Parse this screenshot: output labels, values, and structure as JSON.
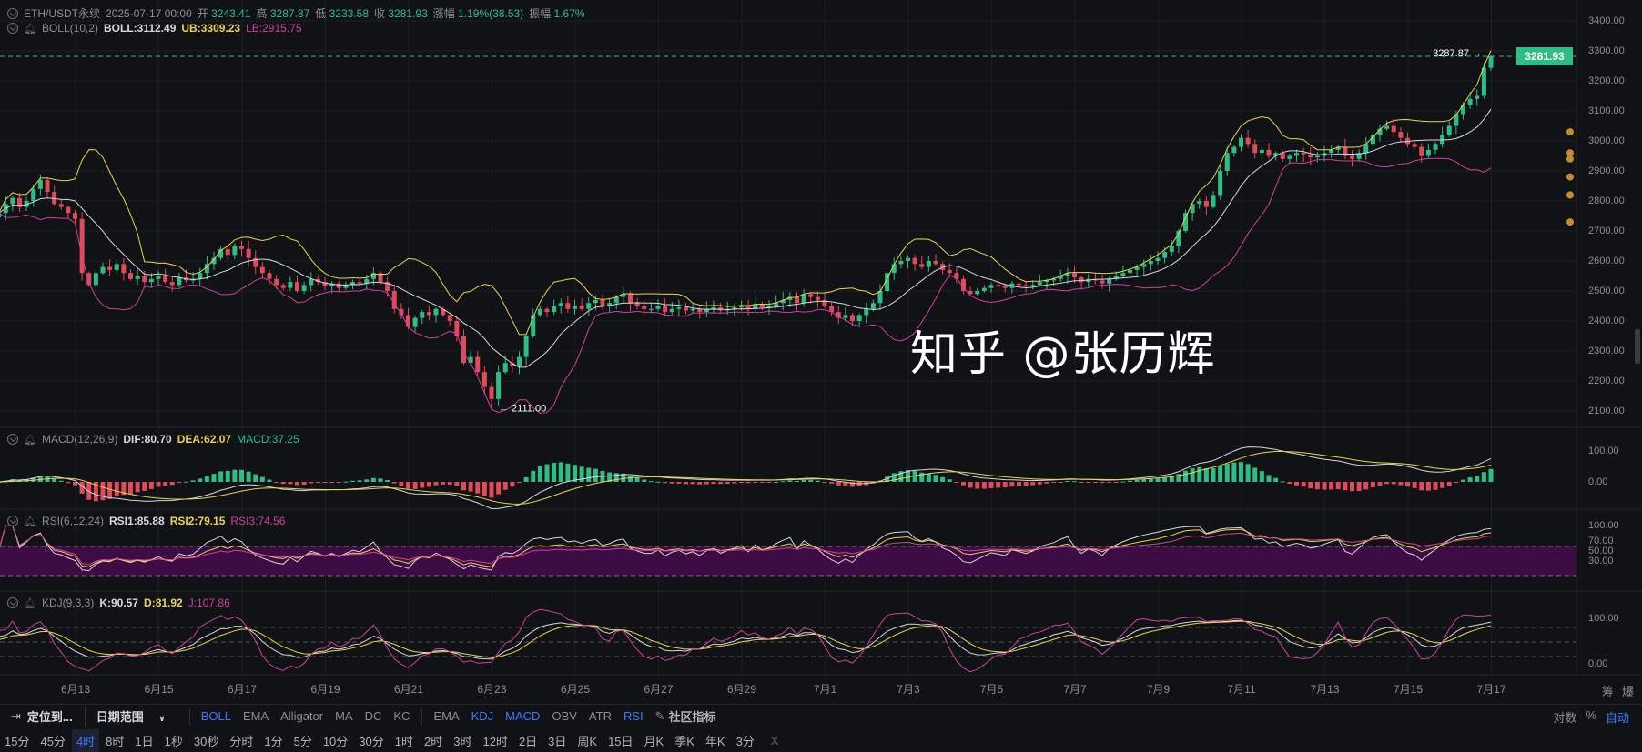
{
  "header": {
    "symbol": "ETH/USDT永续",
    "time": "2025-07-17 00:00",
    "open_label": "开",
    "open": "3243.41",
    "high_label": "高",
    "high": "3287.87",
    "low_label": "低",
    "low": "3233.58",
    "close_label": "收",
    "close": "3281.93",
    "change_label": "涨幅",
    "change": "1.19%(38.53)",
    "amp_label": "振幅",
    "amp": "1.67%"
  },
  "boll": {
    "name": "BOLL(10,2)",
    "mid": "BOLL:3112.49",
    "ub": "UB:3309.23",
    "lb": "LB:2915.75"
  },
  "macd": {
    "name": "MACD(12,26,9)",
    "dif": "DIF:80.70",
    "dea": "DEA:62.07",
    "macd": "MACD:37.25",
    "axis": [
      "100.00",
      "0.00"
    ]
  },
  "rsi": {
    "name": "RSI(6,12,24)",
    "rsi1": "RSI1:85.88",
    "rsi2": "RSI2:79.15",
    "rsi3": "RSI3:74.56",
    "axis": [
      "100.00",
      "70.00",
      "50.00",
      "30.00"
    ]
  },
  "kdj": {
    "name": "KDJ(9,3,3)",
    "k": "K:90.57",
    "d": "D:81.92",
    "j": "J:107.86",
    "axis": [
      "100.00",
      "0.00"
    ]
  },
  "price_axis": [
    "3400.00",
    "3300.00",
    "3200.00",
    "3100.00",
    "3000.00",
    "2900.00",
    "2800.00",
    "2700.00",
    "2600.00",
    "2500.00",
    "2400.00",
    "2300.00",
    "2200.00",
    "2100.00"
  ],
  "last_price": "3281.93",
  "dates": [
    "6月13",
    "6月15",
    "6月17",
    "6月19",
    "6月21",
    "6月23",
    "6月25",
    "6月27",
    "6月29",
    "7月1",
    "7月3",
    "7月5",
    "7月7",
    "7月9",
    "7月11",
    "7月13",
    "7月15",
    "7月17"
  ],
  "colors": {
    "up": "#2ebd85",
    "down": "#e04a59",
    "boll_mid": "#d6d8de",
    "boll_ub": "#e8d44d",
    "boll_lb": "#d0409f",
    "rsi_band": "#3d0c45"
  },
  "chart_data": {
    "type": "candlestick",
    "interval": "4时",
    "first_candle": "2025-06-11 04:00",
    "ylim": [
      2050,
      3430
    ],
    "last_candle": {
      "open": 3243.41,
      "high": 3287.87,
      "low": 3233.58,
      "close": 3281.93
    },
    "annotations": {
      "high": "3287.87",
      "low": "2111.00"
    },
    "closes": [
      2760,
      2790,
      2810,
      2780,
      2800,
      2840,
      2870,
      2830,
      2790,
      2780,
      2760,
      2740,
      2560,
      2520,
      2560,
      2580,
      2570,
      2590,
      2560,
      2540,
      2550,
      2530,
      2540,
      2550,
      2530,
      2520,
      2545,
      2535,
      2540,
      2560,
      2590,
      2610,
      2640,
      2620,
      2650,
      2640,
      2610,
      2580,
      2560,
      2540,
      2520,
      2510,
      2530,
      2500,
      2520,
      2540,
      2530,
      2515,
      2525,
      2510,
      2520,
      2530,
      2525,
      2540,
      2560,
      2530,
      2500,
      2440,
      2420,
      2380,
      2410,
      2430,
      2420,
      2440,
      2420,
      2400,
      2350,
      2260,
      2280,
      2230,
      2180,
      2140,
      2230,
      2260,
      2250,
      2280,
      2350,
      2420,
      2440,
      2430,
      2450,
      2460,
      2440,
      2450,
      2440,
      2460,
      2470,
      2450,
      2460,
      2480,
      2490,
      2460,
      2450,
      2440,
      2440,
      2450,
      2430,
      2440,
      2445,
      2435,
      2440,
      2430,
      2440,
      2445,
      2435,
      2440,
      2445,
      2450,
      2440,
      2455,
      2445,
      2450,
      2460,
      2470,
      2480,
      2460,
      2490,
      2480,
      2470,
      2450,
      2430,
      2410,
      2420,
      2400,
      2420,
      2440,
      2460,
      2500,
      2560,
      2590,
      2600,
      2610,
      2590,
      2580,
      2600,
      2590,
      2570,
      2560,
      2540,
      2500,
      2490,
      2500,
      2510,
      2520,
      2515,
      2510,
      2525,
      2520,
      2515,
      2520,
      2530,
      2535,
      2540,
      2550,
      2560,
      2545,
      2530,
      2540,
      2535,
      2525,
      2540,
      2550,
      2560,
      2570,
      2580,
      2590,
      2600,
      2610,
      2630,
      2650,
      2700,
      2760,
      2790,
      2800,
      2780,
      2820,
      2900,
      2960,
      2980,
      3010,
      2990,
      2960,
      2970,
      2950,
      2960,
      2940,
      2950,
      2960,
      2955,
      2945,
      2950,
      2960,
      2970,
      2980,
      2950,
      2940,
      2960,
      2990,
      3020,
      3040,
      3050,
      3030,
      3010,
      2990,
      2980,
      2950,
      2970,
      2990,
      3020,
      3050,
      3090,
      3120,
      3140,
      3150,
      3243.41,
      3281.93
    ]
  },
  "toolbar": {
    "locate": "定位到...",
    "date_range": "日期范围",
    "main_indicators": [
      "BOLL",
      "EMA",
      "Alligator",
      "MA",
      "DC",
      "KC"
    ],
    "main_active": [
      "BOLL"
    ],
    "sub_indicators": [
      "EMA",
      "KDJ",
      "MACD",
      "OBV",
      "ATR",
      "RSI"
    ],
    "sub_active": [
      "KDJ",
      "MACD",
      "RSI"
    ],
    "community": "社区指标",
    "scale": [
      "对数",
      "%",
      "自动"
    ]
  },
  "side_labels": [
    "筹",
    "爆"
  ],
  "timeframes": [
    "15分",
    "45分",
    "4时",
    "8时",
    "1日",
    "1秒",
    "30秒",
    "分时",
    "1分",
    "5分",
    "10分",
    "30分",
    "1时",
    "2时",
    "3时",
    "12时",
    "2日",
    "3日",
    "周K",
    "15日",
    "月K",
    "季K",
    "年K",
    "3分"
  ],
  "timeframe_active": "4时",
  "close_symbol": "X",
  "watermark": "知乎 @张历辉"
}
